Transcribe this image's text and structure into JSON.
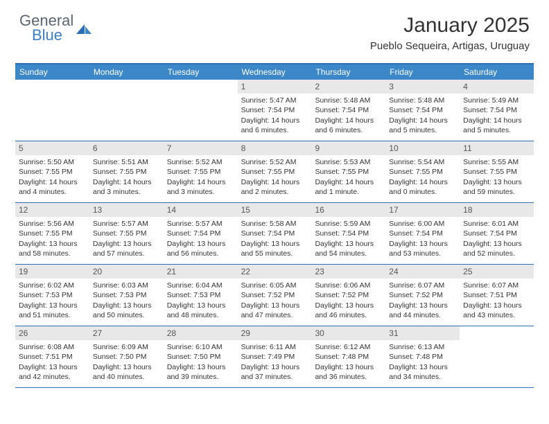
{
  "logo": {
    "general": "General",
    "blue": "Blue"
  },
  "title": "January 2025",
  "location": "Pueblo Sequeira, Artigas, Uruguay",
  "colors": {
    "header_bg": "#3b87c8",
    "header_border": "#2c6eb5",
    "daynum_bg": "#e8e8e8",
    "text": "#333333",
    "logo_gray": "#5a6570",
    "logo_blue": "#3b7fc4"
  },
  "weekdays": [
    "Sunday",
    "Monday",
    "Tuesday",
    "Wednesday",
    "Thursday",
    "Friday",
    "Saturday"
  ],
  "weeks": [
    [
      {
        "empty": true
      },
      {
        "empty": true
      },
      {
        "empty": true
      },
      {
        "num": "1",
        "sunrise": "Sunrise: 5:47 AM",
        "sunset": "Sunset: 7:54 PM",
        "daylight": "Daylight: 14 hours and 6 minutes."
      },
      {
        "num": "2",
        "sunrise": "Sunrise: 5:48 AM",
        "sunset": "Sunset: 7:54 PM",
        "daylight": "Daylight: 14 hours and 6 minutes."
      },
      {
        "num": "3",
        "sunrise": "Sunrise: 5:48 AM",
        "sunset": "Sunset: 7:54 PM",
        "daylight": "Daylight: 14 hours and 5 minutes."
      },
      {
        "num": "4",
        "sunrise": "Sunrise: 5:49 AM",
        "sunset": "Sunset: 7:54 PM",
        "daylight": "Daylight: 14 hours and 5 minutes."
      }
    ],
    [
      {
        "num": "5",
        "sunrise": "Sunrise: 5:50 AM",
        "sunset": "Sunset: 7:55 PM",
        "daylight": "Daylight: 14 hours and 4 minutes."
      },
      {
        "num": "6",
        "sunrise": "Sunrise: 5:51 AM",
        "sunset": "Sunset: 7:55 PM",
        "daylight": "Daylight: 14 hours and 3 minutes."
      },
      {
        "num": "7",
        "sunrise": "Sunrise: 5:52 AM",
        "sunset": "Sunset: 7:55 PM",
        "daylight": "Daylight: 14 hours and 3 minutes."
      },
      {
        "num": "8",
        "sunrise": "Sunrise: 5:52 AM",
        "sunset": "Sunset: 7:55 PM",
        "daylight": "Daylight: 14 hours and 2 minutes."
      },
      {
        "num": "9",
        "sunrise": "Sunrise: 5:53 AM",
        "sunset": "Sunset: 7:55 PM",
        "daylight": "Daylight: 14 hours and 1 minute."
      },
      {
        "num": "10",
        "sunrise": "Sunrise: 5:54 AM",
        "sunset": "Sunset: 7:55 PM",
        "daylight": "Daylight: 14 hours and 0 minutes."
      },
      {
        "num": "11",
        "sunrise": "Sunrise: 5:55 AM",
        "sunset": "Sunset: 7:55 PM",
        "daylight": "Daylight: 13 hours and 59 minutes."
      }
    ],
    [
      {
        "num": "12",
        "sunrise": "Sunrise: 5:56 AM",
        "sunset": "Sunset: 7:55 PM",
        "daylight": "Daylight: 13 hours and 58 minutes."
      },
      {
        "num": "13",
        "sunrise": "Sunrise: 5:57 AM",
        "sunset": "Sunset: 7:55 PM",
        "daylight": "Daylight: 13 hours and 57 minutes."
      },
      {
        "num": "14",
        "sunrise": "Sunrise: 5:57 AM",
        "sunset": "Sunset: 7:54 PM",
        "daylight": "Daylight: 13 hours and 56 minutes."
      },
      {
        "num": "15",
        "sunrise": "Sunrise: 5:58 AM",
        "sunset": "Sunset: 7:54 PM",
        "daylight": "Daylight: 13 hours and 55 minutes."
      },
      {
        "num": "16",
        "sunrise": "Sunrise: 5:59 AM",
        "sunset": "Sunset: 7:54 PM",
        "daylight": "Daylight: 13 hours and 54 minutes."
      },
      {
        "num": "17",
        "sunrise": "Sunrise: 6:00 AM",
        "sunset": "Sunset: 7:54 PM",
        "daylight": "Daylight: 13 hours and 53 minutes."
      },
      {
        "num": "18",
        "sunrise": "Sunrise: 6:01 AM",
        "sunset": "Sunset: 7:54 PM",
        "daylight": "Daylight: 13 hours and 52 minutes."
      }
    ],
    [
      {
        "num": "19",
        "sunrise": "Sunrise: 6:02 AM",
        "sunset": "Sunset: 7:53 PM",
        "daylight": "Daylight: 13 hours and 51 minutes."
      },
      {
        "num": "20",
        "sunrise": "Sunrise: 6:03 AM",
        "sunset": "Sunset: 7:53 PM",
        "daylight": "Daylight: 13 hours and 50 minutes."
      },
      {
        "num": "21",
        "sunrise": "Sunrise: 6:04 AM",
        "sunset": "Sunset: 7:53 PM",
        "daylight": "Daylight: 13 hours and 48 minutes."
      },
      {
        "num": "22",
        "sunrise": "Sunrise: 6:05 AM",
        "sunset": "Sunset: 7:52 PM",
        "daylight": "Daylight: 13 hours and 47 minutes."
      },
      {
        "num": "23",
        "sunrise": "Sunrise: 6:06 AM",
        "sunset": "Sunset: 7:52 PM",
        "daylight": "Daylight: 13 hours and 46 minutes."
      },
      {
        "num": "24",
        "sunrise": "Sunrise: 6:07 AM",
        "sunset": "Sunset: 7:52 PM",
        "daylight": "Daylight: 13 hours and 44 minutes."
      },
      {
        "num": "25",
        "sunrise": "Sunrise: 6:07 AM",
        "sunset": "Sunset: 7:51 PM",
        "daylight": "Daylight: 13 hours and 43 minutes."
      }
    ],
    [
      {
        "num": "26",
        "sunrise": "Sunrise: 6:08 AM",
        "sunset": "Sunset: 7:51 PM",
        "daylight": "Daylight: 13 hours and 42 minutes."
      },
      {
        "num": "27",
        "sunrise": "Sunrise: 6:09 AM",
        "sunset": "Sunset: 7:50 PM",
        "daylight": "Daylight: 13 hours and 40 minutes."
      },
      {
        "num": "28",
        "sunrise": "Sunrise: 6:10 AM",
        "sunset": "Sunset: 7:50 PM",
        "daylight": "Daylight: 13 hours and 39 minutes."
      },
      {
        "num": "29",
        "sunrise": "Sunrise: 6:11 AM",
        "sunset": "Sunset: 7:49 PM",
        "daylight": "Daylight: 13 hours and 37 minutes."
      },
      {
        "num": "30",
        "sunrise": "Sunrise: 6:12 AM",
        "sunset": "Sunset: 7:48 PM",
        "daylight": "Daylight: 13 hours and 36 minutes."
      },
      {
        "num": "31",
        "sunrise": "Sunrise: 6:13 AM",
        "sunset": "Sunset: 7:48 PM",
        "daylight": "Daylight: 13 hours and 34 minutes."
      },
      {
        "empty": true
      }
    ]
  ]
}
